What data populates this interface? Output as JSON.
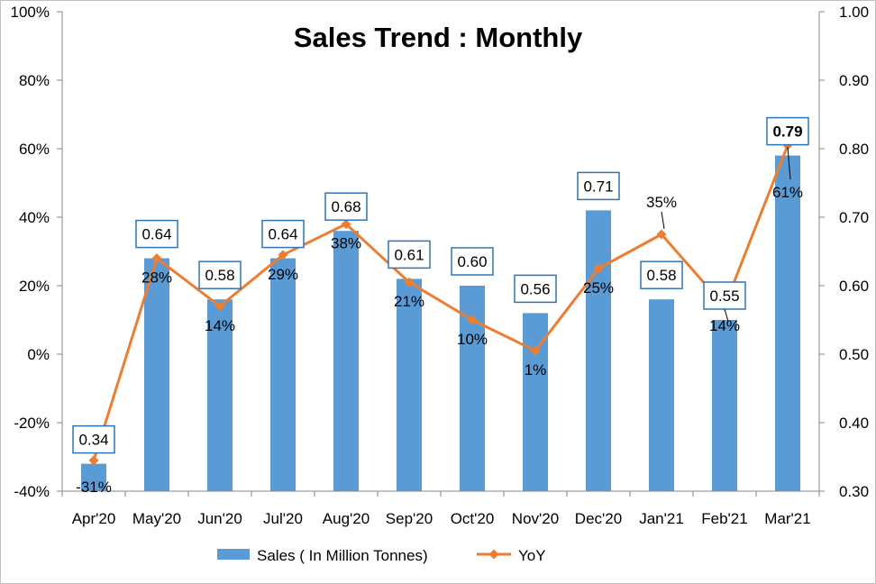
{
  "chart_data": {
    "type": "bar",
    "title": "Sales Trend : Monthly",
    "categories": [
      "Apr'20",
      "May'20",
      "Jun'20",
      "Jul'20",
      "Aug'20",
      "Sep'20",
      "Oct'20",
      "Nov'20",
      "Dec'20",
      "Jan'21",
      "Feb'21",
      "Mar'21"
    ],
    "series": [
      {
        "name": "Sales ( In Million Tonnes)",
        "type": "bar",
        "axis": "right",
        "values": [
          0.34,
          0.64,
          0.58,
          0.64,
          0.68,
          0.61,
          0.6,
          0.56,
          0.71,
          0.58,
          0.55,
          0.79
        ],
        "labels": [
          "0.34",
          "0.64",
          "0.58",
          "0.64",
          "0.68",
          "0.61",
          "0.60",
          "0.56",
          "0.71",
          "0.58",
          "0.55",
          "0.79"
        ],
        "color": "#5b9bd5"
      },
      {
        "name": "YoY",
        "type": "line",
        "axis": "left",
        "values": [
          -31,
          28,
          14,
          29,
          38,
          21,
          10,
          1,
          25,
          35,
          14,
          61
        ],
        "labels": [
          "-31%",
          "28%",
          "14%",
          "29%",
          "38%",
          "21%",
          "10%",
          "1%",
          "25%",
          "35%",
          "14%",
          "61%"
        ],
        "color": "#ed7d31"
      }
    ],
    "y_left": {
      "ylim": [
        -40,
        100
      ],
      "ticks": [
        "-40%",
        "-20%",
        "0%",
        "20%",
        "40%",
        "60%",
        "80%",
        "100%"
      ]
    },
    "y_right": {
      "ylim": [
        0.3,
        1.0
      ],
      "ticks": [
        "0.30",
        "0.40",
        "0.50",
        "0.60",
        "0.70",
        "0.80",
        "0.90",
        "1.00"
      ]
    },
    "grid": false,
    "legend": "bottom",
    "colors": {
      "bar": "#5b9bd5",
      "line": "#ed7d31",
      "label_box_border": "#2e75b6",
      "axis": "#868686"
    }
  }
}
